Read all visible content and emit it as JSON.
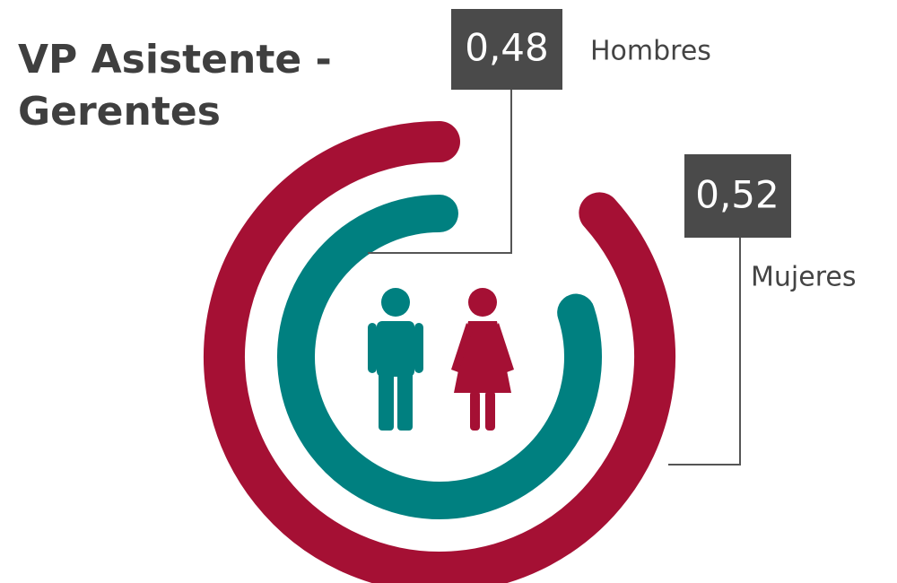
{
  "chart_data": {
    "type": "radial_bar",
    "title": "VP Asistente - Gerentes",
    "series": [
      {
        "name": "Hombres",
        "color": "#008080",
        "values": [
          0.48
        ],
        "value_labels": [
          "0,48"
        ]
      },
      {
        "name": "Mujeres",
        "color": "#a51034",
        "values": [
          0.52
        ],
        "value_labels": [
          "0,52"
        ]
      }
    ],
    "rlim": [
      0,
      0.6
    ]
  }
}
